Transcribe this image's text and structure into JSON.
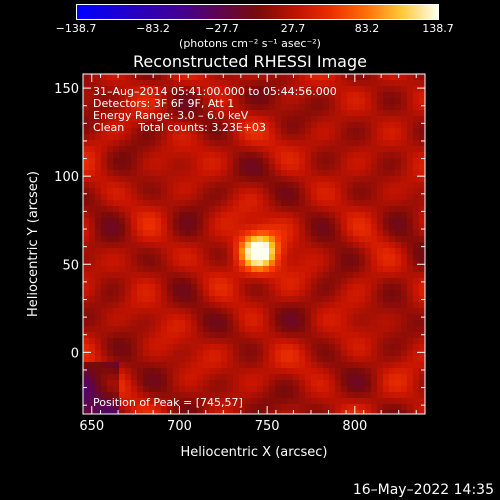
{
  "colorbar": {
    "ticks": [
      "−138.7",
      "−83.2",
      "−27.7",
      "27.7",
      "83.2",
      "138.7"
    ],
    "unit": "(photons cm⁻² s⁻¹ asec⁻²)"
  },
  "annotations": {
    "time_range": "31–Aug–2014 05:41:00.000 to 05:44:56.000",
    "detectors": "Detectors: 3F 6F 9F, Att 1",
    "energy": "Energy Range: 3.0 – 6.0 keV",
    "method": "Clean    Total counts: 3.23E+03",
    "peak": "Position of Peak = [745,57]"
  },
  "footer": {
    "date": "16–May–2022 14:35"
  },
  "chart_data": {
    "type": "heatmap",
    "title": "Reconstructed RHESSI Image",
    "xlabel": "Heliocentric X (arcsec)",
    "ylabel": "Heliocentric Y (arcsec)",
    "xlim": [
      645,
      840
    ],
    "ylim": [
      -35,
      158
    ],
    "xticks": [
      650,
      700,
      750,
      800
    ],
    "yticks": [
      0,
      50,
      100,
      150
    ],
    "zlim": [
      -138.7,
      138.7
    ],
    "peak": {
      "x": 745,
      "y": 57,
      "value": 138.7
    },
    "source_extent_arcsec": 8
  }
}
